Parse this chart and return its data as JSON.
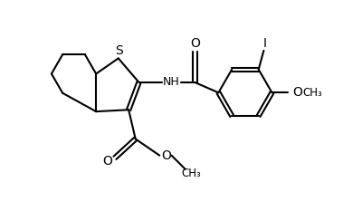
{
  "background_color": "#ffffff",
  "line_color": "#000000",
  "text_color": "#000000",
  "line_width": 1.5,
  "font_size": 9,
  "figsize": [
    3.79,
    2.33
  ],
  "dpi": 100,
  "xlim": [
    0,
    10
  ],
  "ylim": [
    0,
    6.15
  ]
}
